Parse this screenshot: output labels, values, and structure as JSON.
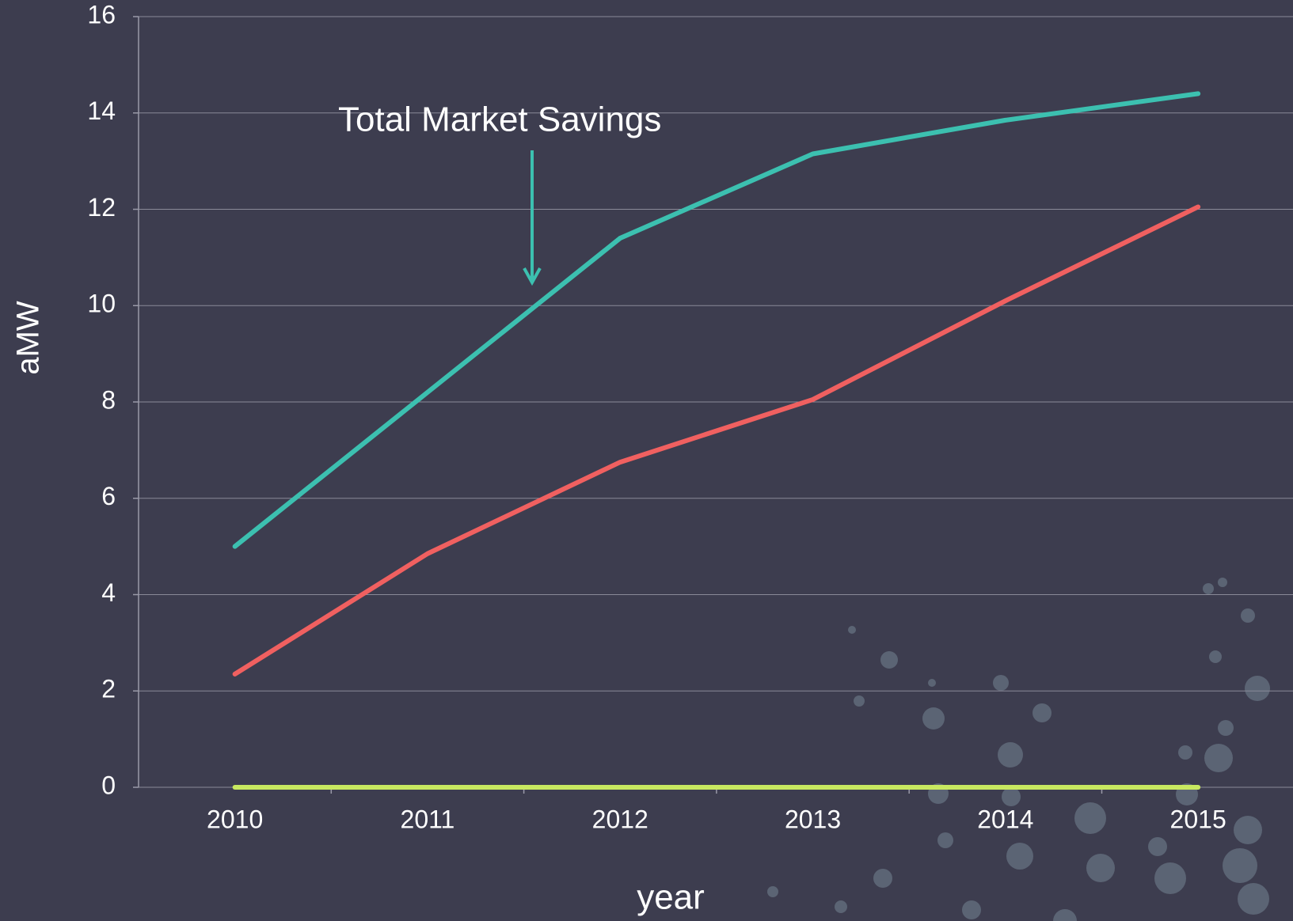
{
  "chart_data": {
    "type": "line",
    "annotation": "Total Market Savings",
    "x_label": "year",
    "y_label": "aMW",
    "categories": [
      "2010",
      "2011",
      "2012",
      "2013",
      "2014",
      "2015"
    ],
    "series": [
      {
        "color": "#3cc0b0",
        "values": [
          5.0,
          8.2,
          11.4,
          13.15,
          13.85,
          14.4
        ]
      },
      {
        "color": "#f06060",
        "values": [
          2.35,
          4.85,
          6.75,
          8.05,
          10.1,
          12.05
        ]
      },
      {
        "color": "#c8e860",
        "values": [
          0,
          0,
          0,
          0,
          0,
          0
        ]
      }
    ],
    "ylim": [
      0,
      16
    ],
    "yticks": [
      0,
      2,
      4,
      6,
      8,
      10,
      12,
      14,
      16
    ],
    "grid": true
  }
}
